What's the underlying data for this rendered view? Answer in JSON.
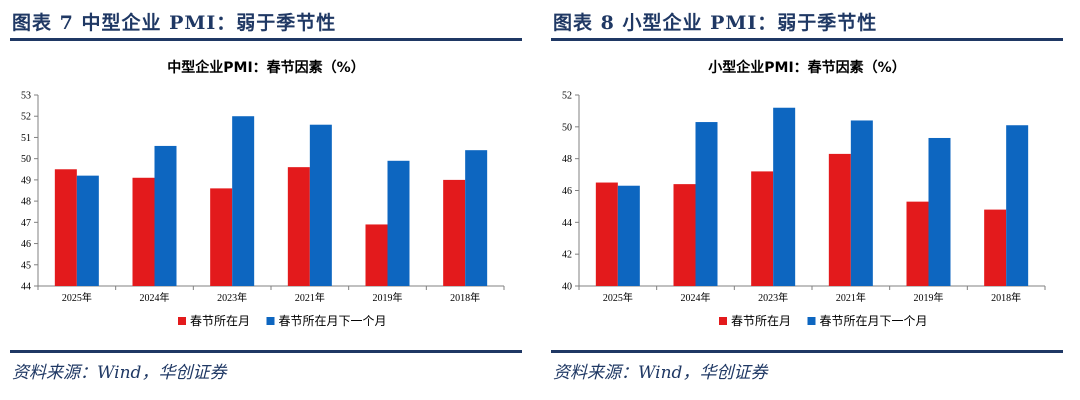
{
  "colors": {
    "red": "#e31a1c",
    "blue": "#0d66c0",
    "navy": "#1f3864",
    "axis": "#808080"
  },
  "panels": [
    {
      "fig_title": "图表 7   中型企业 PMI：弱于季节性",
      "source": "资料来源：Wind，华创证券",
      "chart_data": {
        "type": "bar",
        "title": "中型企业PMI：春节因素（%）",
        "categories": [
          "2025年",
          "2024年",
          "2023年",
          "2021年",
          "2019年",
          "2018年"
        ],
        "series": [
          {
            "name": "春节所在月",
            "color": "#e31a1c",
            "values": [
              49.5,
              49.1,
              48.6,
              49.6,
              46.9,
              49.0
            ]
          },
          {
            "name": "春节所在月下一个月",
            "color": "#0d66c0",
            "values": [
              49.2,
              50.6,
              52.0,
              51.6,
              49.9,
              50.4
            ]
          }
        ],
        "ylim": [
          44,
          53
        ],
        "yticks": [
          44,
          45,
          46,
          47,
          48,
          49,
          50,
          51,
          52,
          53
        ],
        "xlabel": "",
        "ylabel": "",
        "legend": "bottom"
      }
    },
    {
      "fig_title": "图表 8   小型企业 PMI：弱于季节性",
      "source": "资料来源：Wind，华创证券",
      "chart_data": {
        "type": "bar",
        "title": "小型企业PMI：春节因素（%）",
        "categories": [
          "2025年",
          "2024年",
          "2023年",
          "2021年",
          "2019年",
          "2018年"
        ],
        "series": [
          {
            "name": "春节所在月",
            "color": "#e31a1c",
            "values": [
              46.5,
              46.4,
              47.2,
              48.3,
              45.3,
              44.8
            ]
          },
          {
            "name": "春节所在月下一个月",
            "color": "#0d66c0",
            "values": [
              46.3,
              50.3,
              51.2,
              50.4,
              49.3,
              50.1
            ]
          }
        ],
        "ylim": [
          40,
          52
        ],
        "yticks": [
          40,
          42,
          44,
          46,
          48,
          50,
          52
        ],
        "xlabel": "",
        "ylabel": "",
        "legend": "bottom"
      }
    }
  ]
}
